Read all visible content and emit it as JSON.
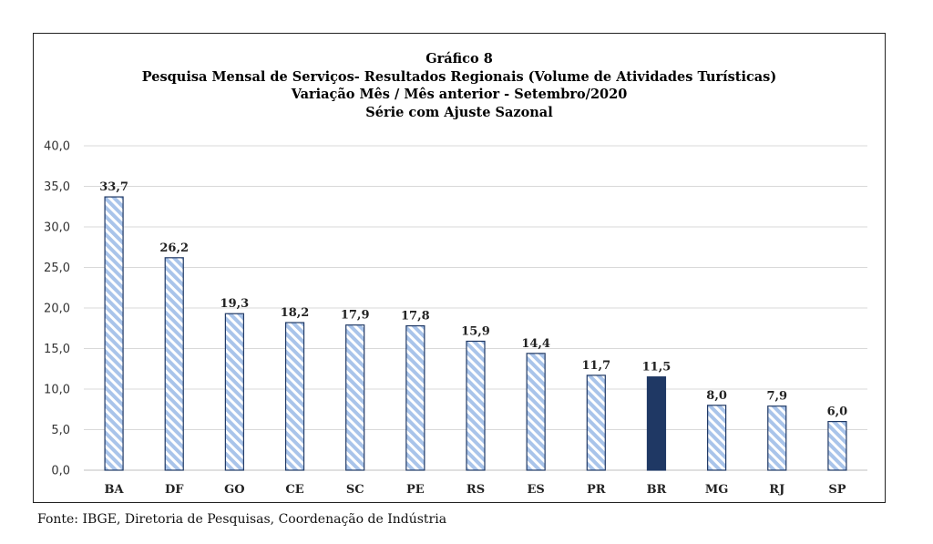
{
  "titles": {
    "line1": "Gráfico 8",
    "line2": "Pesquisa Mensal de Serviços- Resultados Regionais (Volume de Atividades Turísticas)",
    "line3": "Variação Mês / Mês anterior  - Setembro/2020",
    "line4": "Série com Ajuste Sazonal"
  },
  "source": "Fonte: IBGE, Diretoria de Pesquisas, Coordenação de Indústria",
  "chart_data": {
    "type": "bar",
    "title": "Gráfico 8",
    "categories": [
      "BA",
      "DF",
      "GO",
      "CE",
      "SC",
      "PE",
      "RS",
      "ES",
      "PR",
      "BR",
      "MG",
      "RJ",
      "SP"
    ],
    "values": [
      33.7,
      26.2,
      19.3,
      18.2,
      17.9,
      17.8,
      15.9,
      14.4,
      11.7,
      11.5,
      8.0,
      7.9,
      6.0
    ],
    "data_labels": [
      "33,7",
      "26,2",
      "19,3",
      "18,2",
      "17,9",
      "17,8",
      "15,9",
      "14,4",
      "11,7",
      "11,5",
      "8,0",
      "7,9",
      "6,0"
    ],
    "highlight_category": "BR",
    "ylim": [
      0,
      40
    ],
    "yticks": [
      "0,0",
      "5,0",
      "10,0",
      "15,0",
      "20,0",
      "25,0",
      "30,0",
      "35,0",
      "40,0"
    ],
    "grid": true,
    "legend": "none",
    "colors": {
      "bar_fill": "#a9c4ea",
      "bar_stripe": "#ffffff",
      "bar_border": "#1f3864",
      "highlight_fill": "#1f3864",
      "grid": "#d9d9d9",
      "axis": "#bfbfbf"
    }
  }
}
